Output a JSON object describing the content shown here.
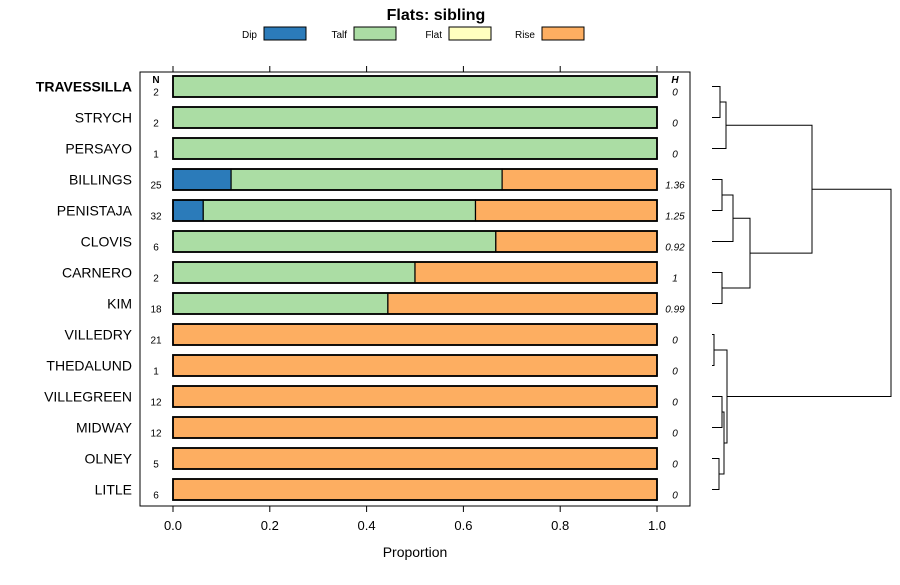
{
  "chart_data": {
    "type": "bar",
    "orientation": "horizontal",
    "stacked": true,
    "title": "Flats: sibling",
    "xlabel": "Proportion",
    "ylabel": "",
    "xlim": [
      0,
      1
    ],
    "x_ticks": [
      0.0,
      0.2,
      0.4,
      0.6,
      0.8,
      1.0
    ],
    "x_tick_labels": [
      "0.0",
      "0.2",
      "0.4",
      "0.6",
      "0.8",
      "1.0"
    ],
    "legend": [
      {
        "name": "Dip",
        "color": "#2b7bba"
      },
      {
        "name": "Talf",
        "color": "#abdda4"
      },
      {
        "name": "Flat",
        "color": "#ffffbf"
      },
      {
        "name": "Rise",
        "color": "#fdae61"
      }
    ],
    "legend_position": "top",
    "n_header": "N",
    "h_header": "H",
    "categories": [
      "TRAVESSILLA",
      "STRYCH",
      "PERSAYO",
      "BILLINGS",
      "PENISTAJA",
      "CLOVIS",
      "CARNERO",
      "KIM",
      "VILLEDRY",
      "THEDALUND",
      "VILLEGREEN",
      "MIDWAY",
      "OLNEY",
      "LITLE"
    ],
    "highlight_category": "TRAVESSILLA",
    "n_values": [
      "2",
      "2",
      "1",
      "25",
      "32",
      "6",
      "2",
      "18",
      "21",
      "1",
      "12",
      "12",
      "5",
      "6"
    ],
    "h_values": [
      "0",
      "0",
      "0",
      "1.36",
      "1.25",
      "0.92",
      "1",
      "0.99",
      "0",
      "0",
      "0",
      "0",
      "0",
      "0"
    ],
    "series": [
      {
        "name": "Dip",
        "values": [
          0,
          0,
          0,
          0.12,
          0.0625,
          0,
          0,
          0,
          0,
          0,
          0,
          0,
          0,
          0
        ]
      },
      {
        "name": "Talf",
        "values": [
          1,
          1,
          1,
          0.56,
          0.5625,
          0.667,
          0.5,
          0.444,
          0,
          0,
          0,
          0,
          0,
          0
        ]
      },
      {
        "name": "Flat",
        "values": [
          0,
          0,
          0,
          0,
          0,
          0,
          0,
          0,
          0,
          0,
          0,
          0,
          0,
          0
        ]
      },
      {
        "name": "Rise",
        "values": [
          0,
          0,
          0,
          0.32,
          0.375,
          0.333,
          0.5,
          0.556,
          1,
          1,
          1,
          1,
          1,
          1
        ]
      }
    ],
    "dendrogram": "hierarchical clustering of the rows, drawn on the right"
  }
}
